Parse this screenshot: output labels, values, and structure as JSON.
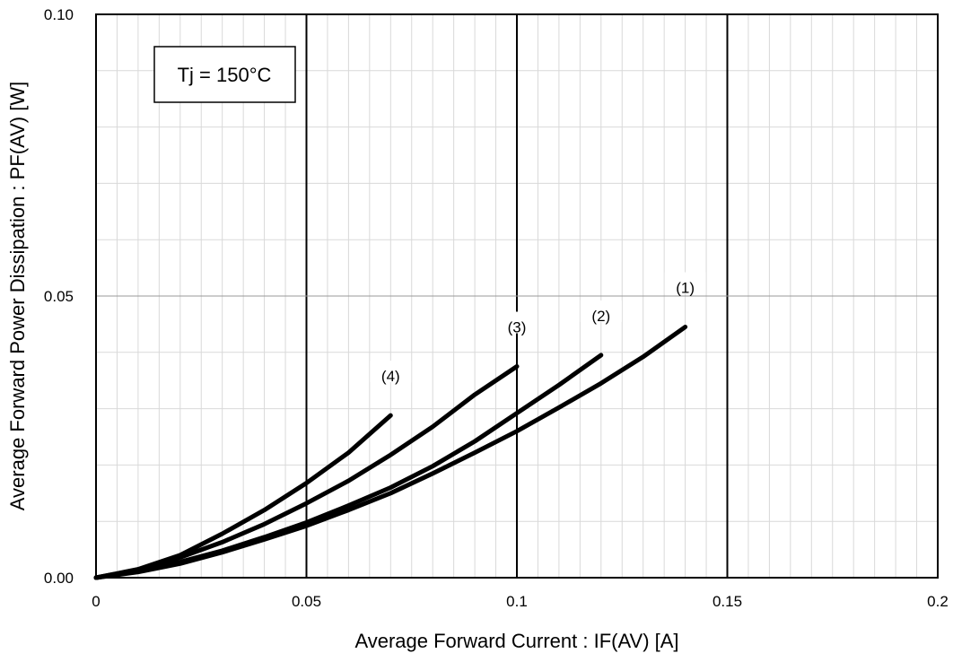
{
  "chart_data": {
    "type": "line",
    "xlabel": "Average Forward Current : IF(AV) [A]",
    "ylabel": "Average Forward Power Dissipation : PF(AV) [W]",
    "xlim": [
      0,
      0.2
    ],
    "ylim": [
      0,
      0.1
    ],
    "x_ticks": [
      "0",
      "0.05",
      "0.1",
      "0.15",
      "0.2"
    ],
    "y_ticks": [
      "0.00",
      "0.05",
      "0.10"
    ],
    "grid": true,
    "annotation": "Tj = 150°C",
    "series": [
      {
        "name": "(1)",
        "x": [
          0,
          0.01,
          0.02,
          0.03,
          0.04,
          0.05,
          0.06,
          0.07,
          0.08,
          0.09,
          0.1,
          0.11,
          0.12,
          0.13,
          0.14
        ],
        "y": [
          0,
          0.001,
          0.0025,
          0.0045,
          0.0068,
          0.0092,
          0.012,
          0.015,
          0.0185,
          0.0222,
          0.026,
          0.0302,
          0.0345,
          0.0392,
          0.0445
        ]
      },
      {
        "name": "(2)",
        "x": [
          0,
          0.01,
          0.02,
          0.03,
          0.04,
          0.05,
          0.06,
          0.07,
          0.08,
          0.09,
          0.1,
          0.11,
          0.12
        ],
        "y": [
          0,
          0.0012,
          0.0028,
          0.0048,
          0.0072,
          0.0098,
          0.0128,
          0.016,
          0.0198,
          0.0242,
          0.0292,
          0.0342,
          0.0395
        ]
      },
      {
        "name": "(3)",
        "x": [
          0,
          0.01,
          0.02,
          0.03,
          0.04,
          0.05,
          0.06,
          0.07,
          0.08,
          0.09,
          0.1
        ],
        "y": [
          0,
          0.0014,
          0.0036,
          0.0063,
          0.0095,
          0.0132,
          0.0172,
          0.0218,
          0.0268,
          0.0325,
          0.0375
        ]
      },
      {
        "name": "(4)",
        "x": [
          0,
          0.01,
          0.02,
          0.03,
          0.04,
          0.05,
          0.06,
          0.07
        ],
        "y": [
          0,
          0.0015,
          0.004,
          0.0078,
          0.012,
          0.0168,
          0.0222,
          0.0288
        ]
      }
    ]
  }
}
